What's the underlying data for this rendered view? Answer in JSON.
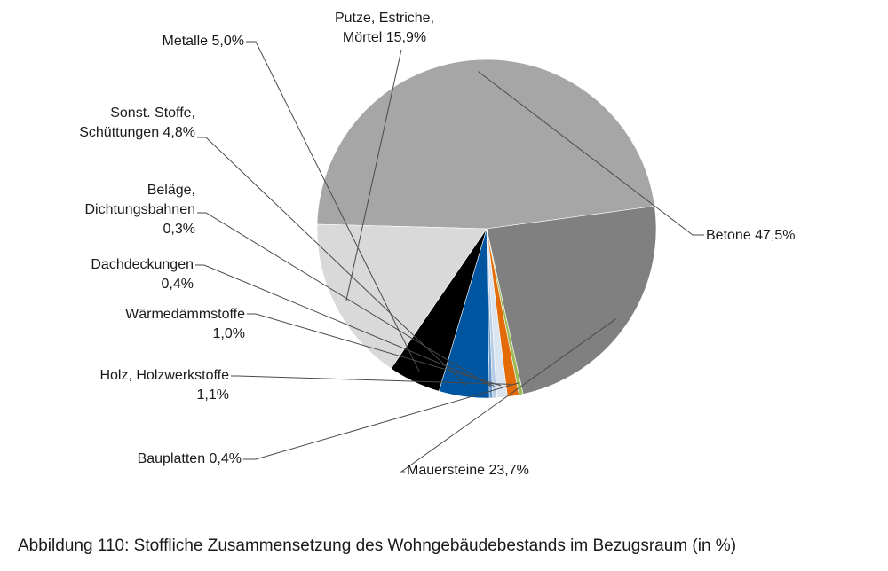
{
  "caption": "Abbildung 110: Stoffliche Zusammensetzung des Wohngebäudebestands im Bezugsraum (in %)",
  "chart_data": {
    "type": "pie",
    "title": "",
    "unit": "%",
    "slices": [
      {
        "name": "Betone",
        "value": 47.5,
        "color": "#a6a6a6",
        "label_lines": [
          "Betone 47,5%"
        ]
      },
      {
        "name": "Mauersteine",
        "value": 23.7,
        "color": "#808080",
        "label_lines": [
          "Mauersteine 23,7%"
        ]
      },
      {
        "name": "Bauplatten",
        "value": 0.4,
        "color": "#9bbb59",
        "label_lines": [
          "Bauplatten  0,4%"
        ]
      },
      {
        "name": "Holz, Holzwerkstoffe",
        "value": 1.1,
        "color": "#e36c09",
        "label_lines": [
          "Holz, Holzwerkstoffe",
          "1,1%"
        ]
      },
      {
        "name": "Wärmedämmstoffe",
        "value": 1.0,
        "color": "#dbe5f1",
        "label_lines": [
          "Wärmedämmstoffe",
          "1,0%"
        ]
      },
      {
        "name": "Dachdeckungen",
        "value": 0.4,
        "color": "#b8cce4",
        "label_lines": [
          "Dachdeckungen",
          "0,4%"
        ]
      },
      {
        "name": "Beläge, Dichtungsbahnen",
        "value": 0.3,
        "color": "#6699cc",
        "label_lines": [
          "Beläge,",
          "Dichtungsbahnen",
          "0,3%"
        ]
      },
      {
        "name": "Sonst. Stoffe, Schüttungen",
        "value": 4.8,
        "color": "#0055a0",
        "label_lines": [
          "Sonst. Stoffe,",
          "Schüttungen  4,8%"
        ]
      },
      {
        "name": "Metalle",
        "value": 5.0,
        "color": "#000000",
        "label_lines": [
          "Metalle 5,0%"
        ]
      },
      {
        "name": "Putze, Estriche, Mörtel",
        "value": 15.9,
        "color": "#d9d9d9",
        "label_lines": [
          "Putze, Estriche,",
          "Mörtel 15,9%"
        ]
      }
    ]
  }
}
